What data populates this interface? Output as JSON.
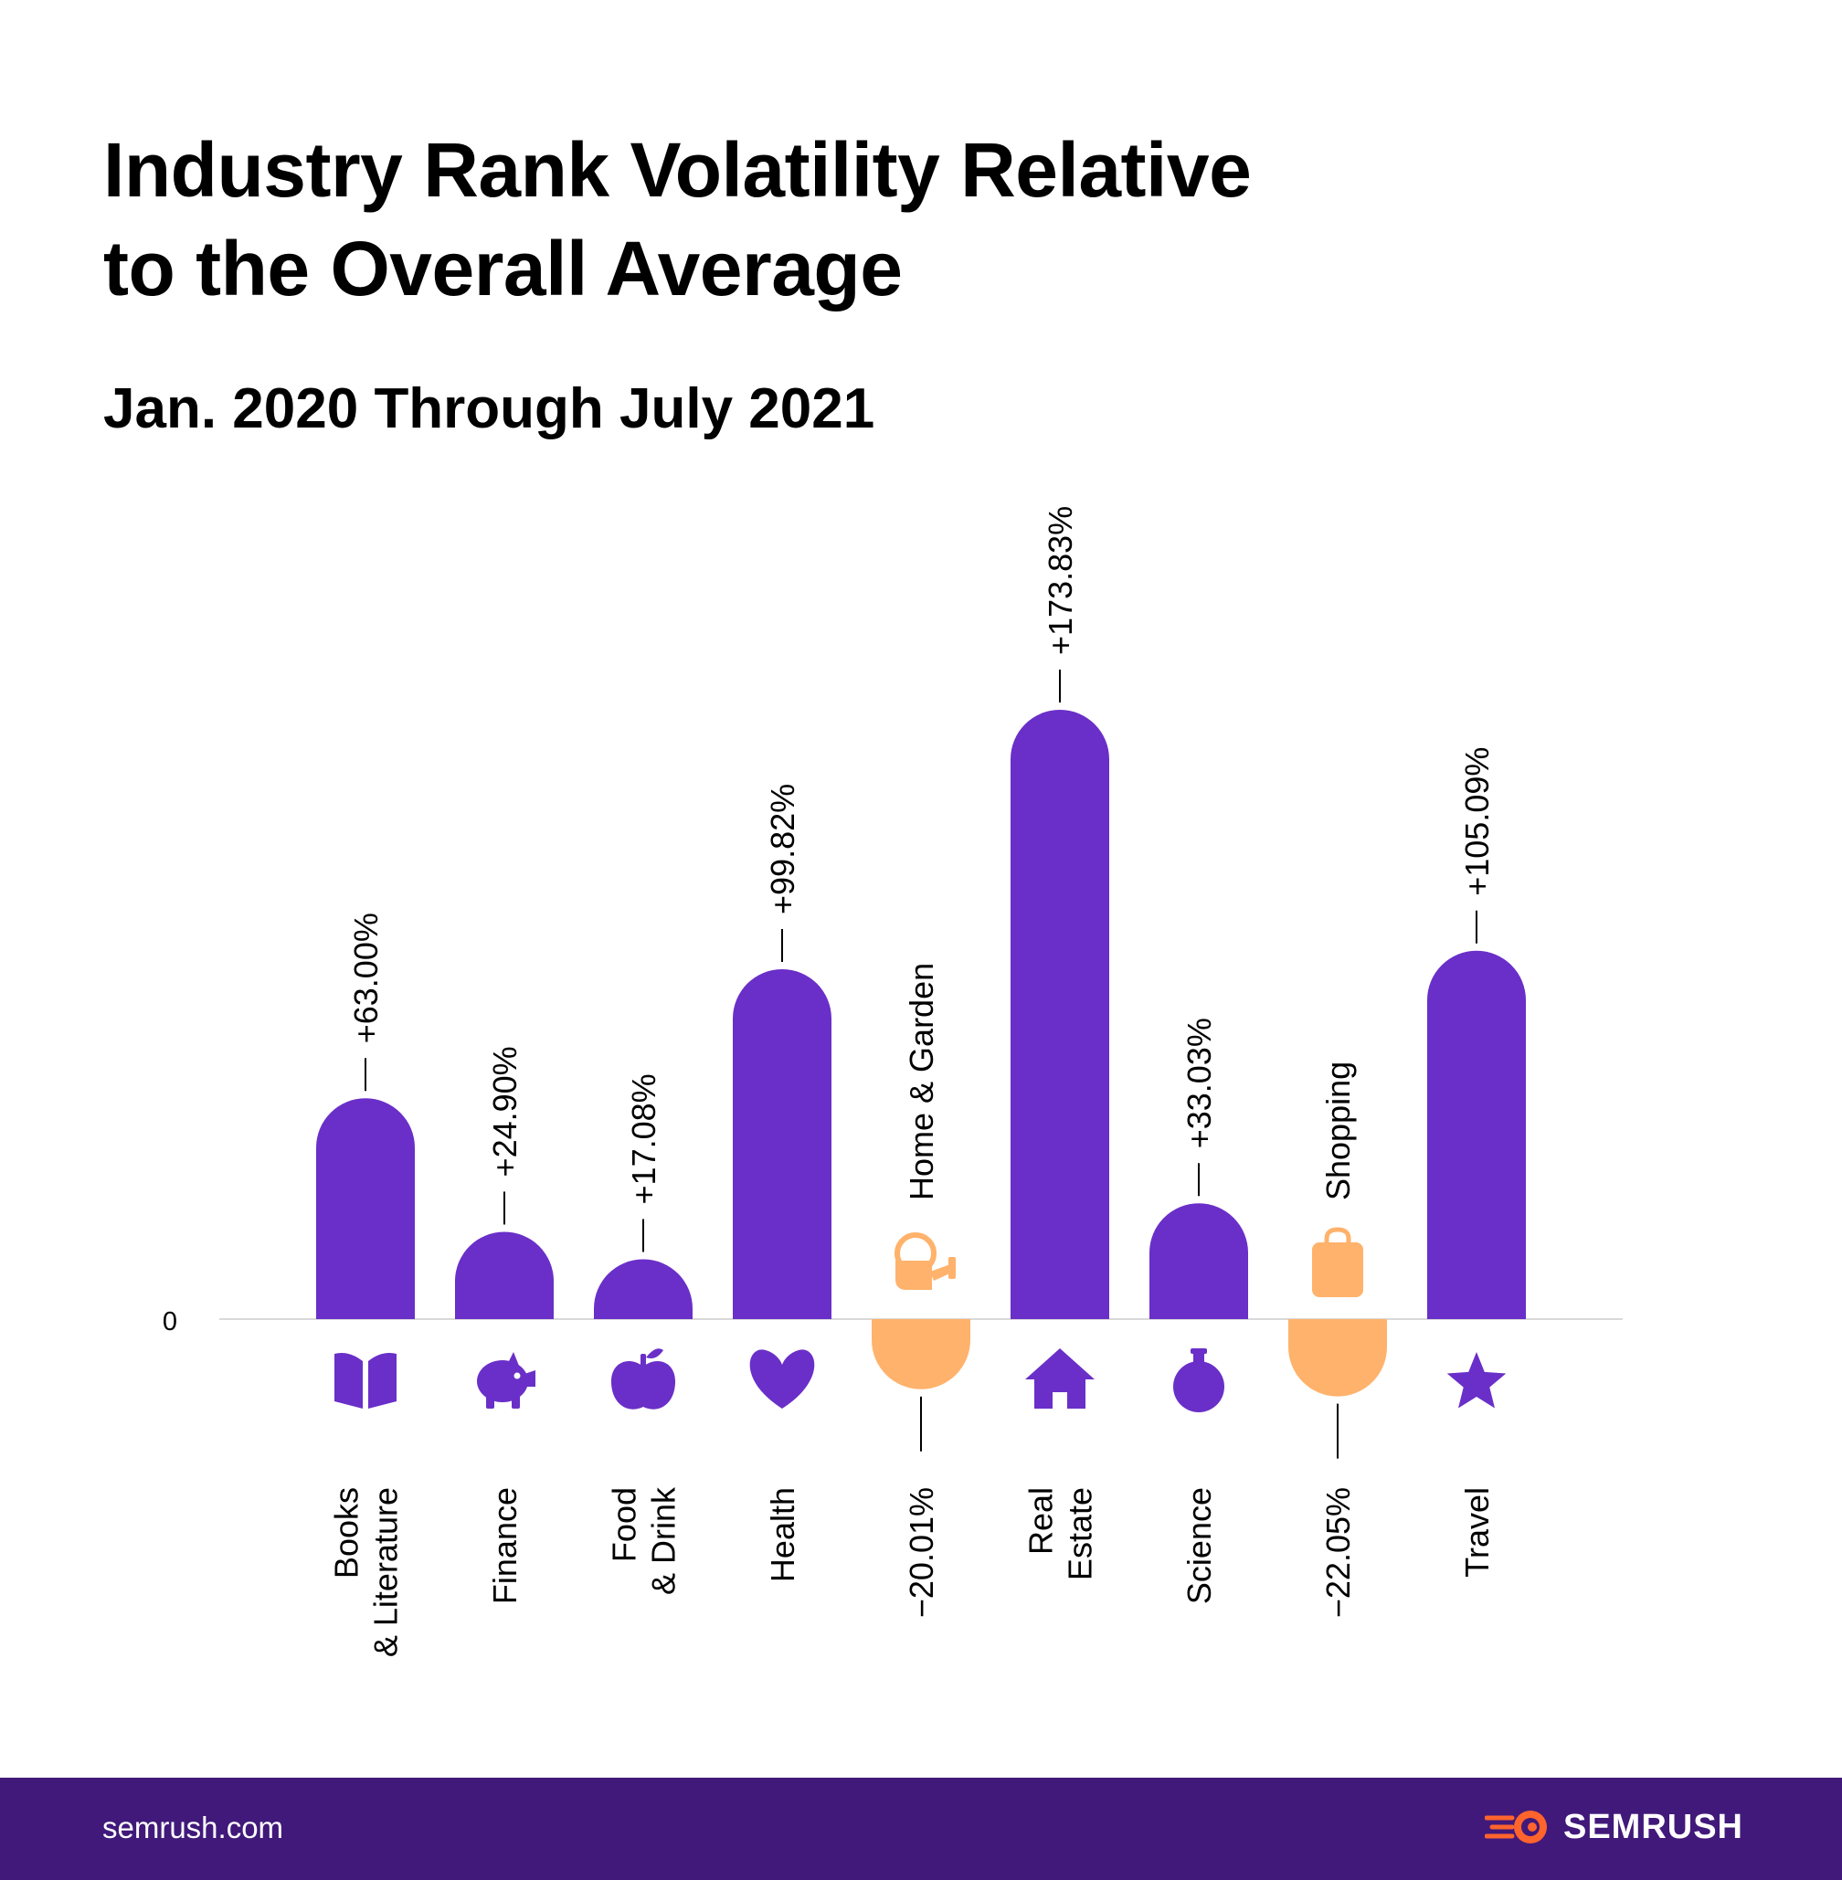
{
  "header": {
    "title_line1": "Industry Rank Volatility Relative",
    "title_line2": "to the Overall Average",
    "subtitle": "Jan. 2020 Through July 2021"
  },
  "colors": {
    "positive": "#6a2fc8",
    "negative": "#ffb26b",
    "baseline": "#d9d9d9",
    "text": "#000000",
    "footer_bg": "#41197a",
    "logo_orange": "#ff642d"
  },
  "chart_data": {
    "type": "bar",
    "title": "Industry Rank Volatility Relative to the Overall Average",
    "subtitle": "Jan. 2020 Through July 2021",
    "categories": [
      "Books & Literature",
      "Finance",
      "Food & Drink",
      "Health",
      "Home & Garden",
      "Real Estate",
      "Science",
      "Shopping",
      "Travel"
    ],
    "category_lines": [
      [
        "Books",
        "& Literature"
      ],
      [
        "Finance"
      ],
      [
        "Food",
        "& Drink"
      ],
      [
        "Health"
      ],
      [
        "Home & Garden"
      ],
      [
        "Real",
        "Estate"
      ],
      [
        "Science"
      ],
      [
        "Shopping"
      ],
      [
        "Travel"
      ]
    ],
    "values": [
      63.0,
      24.9,
      17.08,
      99.82,
      -20.01,
      173.83,
      33.03,
      -22.05,
      105.09
    ],
    "value_labels": [
      "+63.00%",
      "+24.90%",
      "+17.08%",
      "+99.82%",
      "−20.01%",
      "+173.83%",
      "+33.03%",
      "−22.05%",
      "+105.09%"
    ],
    "icons": [
      "book-icon",
      "piggy-bank-icon",
      "apple-icon",
      "heart-icon",
      "watering-can-icon",
      "house-icon",
      "flask-icon",
      "shopping-bag-icon",
      "star-icon"
    ],
    "zero_label": "0",
    "ylabel": "",
    "xlabel": "",
    "ylim": [
      -30,
      200
    ],
    "grid": false,
    "legend": "none"
  },
  "footer": {
    "url": "semrush.com",
    "logo_text": "SEMRUSH"
  }
}
